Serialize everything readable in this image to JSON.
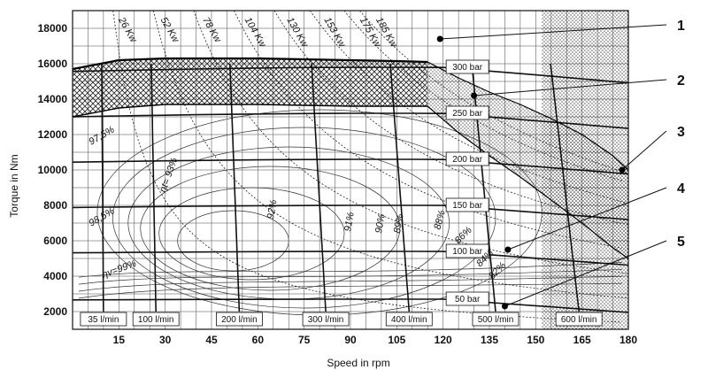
{
  "chart_data": {
    "type": "line",
    "xlabel": "Speed in rpm",
    "ylabel": "Torque in Nm",
    "xlim": [
      0,
      180
    ],
    "ylim": [
      1000,
      19000
    ],
    "x_ticks": [
      15,
      30,
      45,
      60,
      75,
      90,
      105,
      120,
      135,
      150,
      165,
      180
    ],
    "y_ticks": [
      2000,
      4000,
      6000,
      8000,
      10000,
      12000,
      14000,
      16000,
      18000
    ],
    "grid": true,
    "power_lines": [
      {
        "label": "26 Kw",
        "kw": 26
      },
      {
        "label": "52 Kw",
        "kw": 52
      },
      {
        "label": "78 Kw",
        "kw": 78
      },
      {
        "label": "104 Kw",
        "kw": 104
      },
      {
        "label": "130 Kw",
        "kw": 130
      },
      {
        "label": "153 Kw",
        "kw": 153
      },
      {
        "label": "175 Kw",
        "kw": 175
      },
      {
        "label": "185 Kw",
        "kw": 185
      }
    ],
    "pressure_lines": [
      {
        "label": "300 bar",
        "torque": 15800
      },
      {
        "label": "250 bar",
        "torque": 13200
      },
      {
        "label": "200 bar",
        "torque": 10600
      },
      {
        "label": "150 bar",
        "torque": 8000
      },
      {
        "label": "100 bar",
        "torque": 5400
      },
      {
        "label": "50 bar",
        "torque": 2700
      }
    ],
    "flow_lines": [
      {
        "label": "35 l/min",
        "speed": 10
      },
      {
        "label": "100 l/min",
        "speed": 27
      },
      {
        "label": "200 l/min",
        "speed": 54
      },
      {
        "label": "300 l/min",
        "speed": 82
      },
      {
        "label": "400 l/min",
        "speed": 109
      },
      {
        "label": "500 l/min",
        "speed": 137
      },
      {
        "label": "600 l/min",
        "speed": 164
      }
    ],
    "efficiency_labels": [
      "97,5%",
      "98,5%",
      "ηt= 93%",
      "ηv=99%",
      "92%",
      "91%",
      "90%",
      "89%",
      "88%",
      "86%",
      "84%",
      "82%"
    ],
    "callouts": [
      "1",
      "2",
      "3",
      "4",
      "5"
    ],
    "max_torque_curve": {
      "x": [
        0,
        15,
        30,
        45,
        60,
        75,
        90,
        105,
        115
      ],
      "y": [
        15700,
        16200,
        16300,
        16300,
        16300,
        16250,
        16200,
        16150,
        16100
      ]
    },
    "lower_envelope_curve": {
      "x": [
        0,
        15,
        30,
        45,
        60,
        75,
        90,
        105,
        115
      ],
      "y": [
        13000,
        13500,
        13700,
        13700,
        13700,
        13650,
        13600,
        13600,
        13600
      ]
    },
    "continuous_upper_curve": {
      "x": [
        115,
        125,
        135,
        145,
        155,
        165,
        175,
        180
      ],
      "y": [
        16100,
        15200,
        14400,
        13700,
        12900,
        12000,
        10800,
        10000
      ]
    },
    "continuous_lower_curve": {
      "x": [
        115,
        125,
        135,
        145,
        155,
        165,
        175,
        180
      ],
      "y": [
        13600,
        12100,
        10800,
        9600,
        8300,
        7000,
        5600,
        5000
      ]
    }
  }
}
